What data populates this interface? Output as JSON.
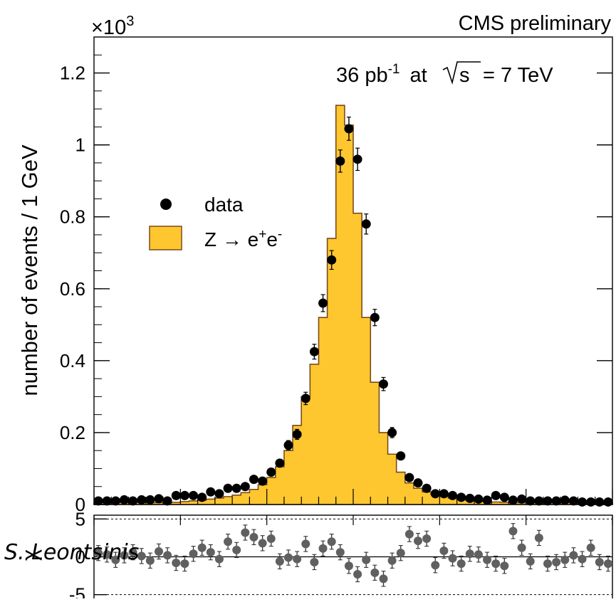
{
  "header": {
    "experiment": "CMS preliminary",
    "exponent": "×10",
    "exponent_power": "3"
  },
  "annotation": {
    "lumi": "36 pb",
    "lumi_exp": "-1",
    "energy_pre": "at",
    "sqrt_s": "s",
    "energy_post": "= 7 TeV"
  },
  "legend": {
    "data_label": "data",
    "mc_label": "Z → e",
    "mc_sup1": "+",
    "mc_mid": "e",
    "mc_sup2": "-"
  },
  "signature": "S. Leontsinis",
  "colors": {
    "fill": "#FEC72F",
    "edge": "#7A4B1A",
    "data": "#000000",
    "residual": "#606060"
  },
  "chart_data": [
    {
      "type": "bar",
      "ylabel": "number of events / 1 GeV",
      "scale_label": "×10^3",
      "yticks": [
        "0",
        "0.2",
        "0.4",
        "0.6",
        "0.8",
        "1",
        "1.2"
      ],
      "ylim": [
        0,
        1.3
      ],
      "xlim": [
        60,
        120
      ],
      "bin_width": 1,
      "series": [
        {
          "name": "Z → e+e-",
          "style": "filled step histogram",
          "values": [
            0.005,
            0.005,
            0.005,
            0.005,
            0.005,
            0.005,
            0.005,
            0.005,
            0.005,
            0.006,
            0.008,
            0.01,
            0.012,
            0.015,
            0.018,
            0.022,
            0.026,
            0.033,
            0.042,
            0.055,
            0.075,
            0.105,
            0.15,
            0.22,
            0.3,
            0.39,
            0.52,
            0.74,
            1.11,
            1.055,
            0.81,
            0.52,
            0.34,
            0.2,
            0.14,
            0.09,
            0.06,
            0.045,
            0.035,
            0.028,
            0.022,
            0.018,
            0.015,
            0.012,
            0.01,
            0.008,
            0.007,
            0.006,
            0.005,
            0.005,
            0.005,
            0.005,
            0.005,
            0.005,
            0.005,
            0.005,
            0.005,
            0.005,
            0.005,
            0.005
          ]
        },
        {
          "name": "data",
          "style": "points with error bars",
          "values": [
            0.01,
            0.01,
            0.01,
            0.013,
            0.01,
            0.013,
            0.013,
            0.016,
            0.01,
            0.025,
            0.025,
            0.025,
            0.02,
            0.035,
            0.03,
            0.045,
            0.045,
            0.05,
            0.07,
            0.065,
            0.09,
            0.115,
            0.165,
            0.195,
            0.295,
            0.425,
            0.56,
            0.68,
            0.955,
            1.045,
            0.96,
            0.78,
            0.52,
            0.335,
            0.2,
            0.135,
            0.075,
            0.06,
            0.045,
            0.03,
            0.03,
            0.025,
            0.02,
            0.017,
            0.015,
            0.012,
            0.025,
            0.02,
            0.012,
            0.015,
            0.01,
            0.01,
            0.01,
            0.01,
            0.012,
            0.01,
            0.007,
            0.007,
            0.007,
            0.007
          ]
        }
      ]
    },
    {
      "type": "scatter",
      "ylabel": "χ",
      "yticks": [
        "5",
        "0",
        "-5"
      ],
      "ylim": [
        -5.5,
        5.5
      ],
      "xlim": [
        60,
        120
      ],
      "series": [
        {
          "name": "",
          "values": [
            0.5,
            0.3,
            -0.4,
            0.2,
            0.6,
            0.1,
            -0.5,
            0.7,
            0.2,
            -0.8,
            -0.9,
            0.4,
            1.2,
            0.6,
            -0.3,
            2.0,
            0.9,
            3.2,
            2.6,
            1.8,
            2.4,
            -0.6,
            -0.1,
            -0.3,
            1.7,
            -0.7,
            1.1,
            2.0,
            0.6,
            -1.2,
            -2.3,
            -0.4,
            -2.1,
            -2.9,
            -0.5,
            0.5,
            3.0,
            2.1,
            2.4,
            -1.1,
            0.8,
            -0.2,
            -0.9,
            0.4,
            0.3,
            -0.4,
            -0.9,
            -1.2,
            3.4,
            1.2,
            -0.6,
            2.5,
            -0.9,
            -0.7,
            -0.4,
            0.2,
            -0.3,
            1.2,
            -0.7,
            -0.9
          ]
        }
      ]
    }
  ]
}
